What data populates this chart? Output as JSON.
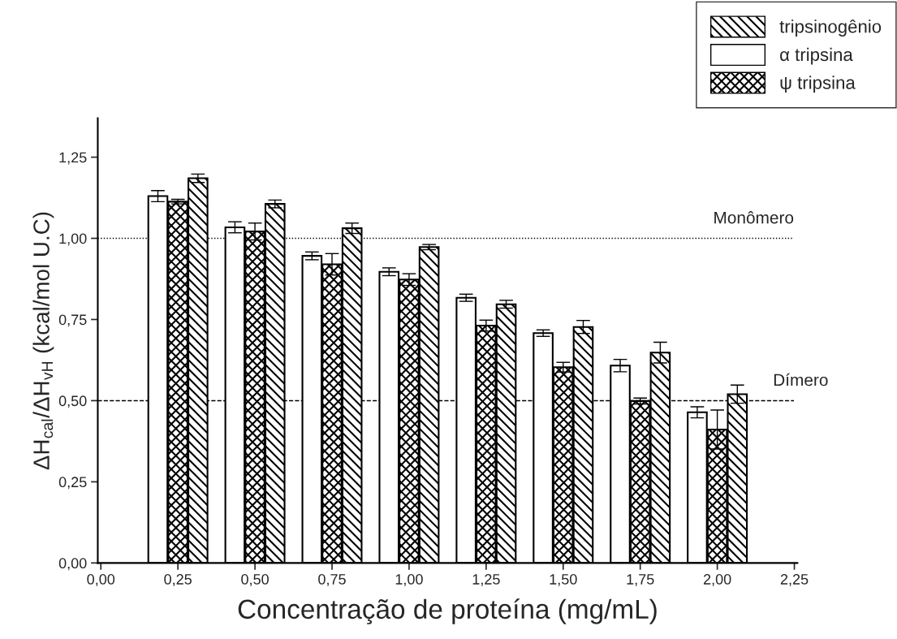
{
  "chart_data": {
    "type": "bar",
    "xlabel": "Concentração de proteína (mg/mL)",
    "ylabel": "ΔH$_{cal}$/ΔH$_{vH}$ (kcal/mol U.C)",
    "x": [
      0.25,
      0.5,
      0.75,
      1.0,
      1.25,
      1.5,
      1.75,
      2.0
    ],
    "series": [
      {
        "name": "α tripsina",
        "color": "#ffffff",
        "values": [
          1.13,
          1.034,
          0.946,
          0.897,
          0.817,
          0.708,
          0.608,
          0.464
        ],
        "errors": [
          0.017,
          0.017,
          0.012,
          0.012,
          0.011,
          0.01,
          0.019,
          0.017
        ]
      },
      {
        "name": "ψ tripsina",
        "color": "#000000",
        "values": [
          1.113,
          1.021,
          0.92,
          0.873,
          0.731,
          0.603,
          0.499,
          0.411
        ],
        "errors": [
          0.007,
          0.026,
          0.033,
          0.018,
          0.017,
          0.015,
          0.009,
          0.06
        ]
      },
      {
        "name": "tripsinogênio",
        "color": "#000000",
        "values": [
          1.185,
          1.106,
          1.031,
          0.973,
          0.797,
          0.727,
          0.648,
          0.52
        ],
        "errors": [
          0.013,
          0.012,
          0.016,
          0.008,
          0.012,
          0.02,
          0.032,
          0.028
        ]
      }
    ],
    "xlim": [
      -0.01,
      2.26
    ],
    "xticks": [
      {
        "value": 0,
        "label": "0,00"
      },
      {
        "value": 0.25,
        "label": "0,25"
      },
      {
        "value": 0.5,
        "label": "0,50"
      },
      {
        "value": 0.75,
        "label": "0,75"
      },
      {
        "value": 1.0,
        "label": "1,00"
      },
      {
        "value": 1.25,
        "label": "1,25"
      },
      {
        "value": 1.5,
        "label": "1,50"
      },
      {
        "value": 1.75,
        "label": "1,75"
      },
      {
        "value": 2.0,
        "label": "2,00"
      },
      {
        "value": 2.25,
        "label": "2,25"
      }
    ],
    "ylim": [
      0,
      1.37
    ],
    "yticks": [
      {
        "value": 0,
        "label": "0,00"
      },
      {
        "value": 0.25,
        "label": "0,25"
      },
      {
        "value": 0.5,
        "label": "0,50"
      },
      {
        "value": 0.75,
        "label": "0,75"
      },
      {
        "value": 1.0,
        "label": "1,00"
      },
      {
        "value": 1.25,
        "label": "1,25"
      }
    ],
    "ref_lines": [
      {
        "axis": "y",
        "value": 1.0,
        "label": "Monômero",
        "line_style": "dotted",
        "color": "#000000"
      },
      {
        "axis": "y",
        "value": 0.5,
        "label": "Dímero",
        "line_style": "dashed",
        "color": "#000000"
      }
    ],
    "legend": "top right",
    "grid": false
  }
}
